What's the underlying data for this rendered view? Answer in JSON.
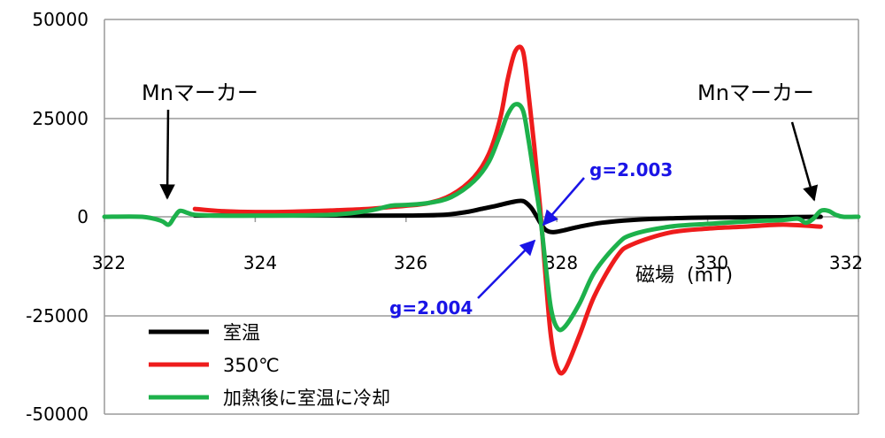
{
  "chart_data": {
    "type": "line",
    "xlabel": "磁場 (mT)",
    "xlabel_main": "磁場",
    "xlabel_unit": "(mT)",
    "ylabel": "",
    "xlim": [
      322,
      332
    ],
    "ylim": [
      -50000,
      50000
    ],
    "x_ticks": [
      "322",
      "324",
      "326",
      "328",
      "330",
      "332"
    ],
    "y_ticks": [
      "50000",
      "25000",
      "0",
      "-25000",
      "-50000"
    ],
    "grid": "horizontal",
    "legend_position": "bottom-left",
    "series": [
      {
        "name": "室温",
        "color": "#000000",
        "x": [
          323.2,
          324.0,
          325.0,
          326.0,
          326.5,
          326.8,
          327.0,
          327.2,
          327.4,
          327.55,
          327.65,
          327.72,
          327.78,
          327.85,
          327.95,
          328.1,
          328.3,
          328.6,
          329.0,
          329.5,
          330.0,
          331.0,
          331.5
        ],
        "y": [
          300,
          300,
          300,
          300,
          500,
          1200,
          2000,
          2800,
          3700,
          4000,
          2500,
          500,
          -1500,
          -3300,
          -3900,
          -3400,
          -2500,
          -1500,
          -800,
          -400,
          -200,
          -100,
          0
        ]
      },
      {
        "name": "350℃",
        "color": "#ee1c1c",
        "x": [
          323.2,
          323.5,
          324.0,
          324.5,
          325.0,
          325.5,
          325.8,
          326.0,
          326.3,
          326.6,
          326.9,
          327.1,
          327.25,
          327.35,
          327.45,
          327.55,
          327.62,
          327.7,
          327.78,
          327.85,
          327.92,
          328.0,
          328.1,
          328.3,
          328.5,
          328.8,
          329.0,
          329.5,
          330.0,
          330.5,
          331.0,
          331.5
        ],
        "y": [
          2000,
          1500,
          1200,
          1300,
          1600,
          2000,
          2500,
          2800,
          3500,
          5500,
          10000,
          16000,
          25000,
          35000,
          42000,
          42000,
          32000,
          18000,
          2000,
          -15000,
          -30000,
          -38000,
          -39000,
          -30000,
          -20000,
          -10000,
          -7000,
          -4000,
          -3000,
          -2500,
          -2000,
          -2500
        ]
      },
      {
        "name": "加熱後に室温に冷却",
        "color": "#1db14b",
        "x": [
          322.0,
          322.5,
          322.75,
          322.85,
          322.93,
          323.0,
          323.1,
          323.2,
          323.5,
          324.0,
          325.0,
          325.5,
          325.8,
          326.0,
          326.3,
          326.6,
          326.9,
          327.1,
          327.25,
          327.35,
          327.45,
          327.55,
          327.62,
          327.7,
          327.78,
          327.85,
          327.92,
          328.0,
          328.1,
          328.3,
          328.5,
          328.8,
          329.0,
          329.5,
          330.0,
          330.5,
          331.0,
          331.2,
          331.3,
          331.4,
          331.5,
          331.6,
          331.7,
          331.8,
          332.0
        ],
        "y": [
          0,
          0,
          -1000,
          -2000,
          0,
          1500,
          1000,
          500,
          300,
          300,
          500,
          1500,
          2800,
          3000,
          3500,
          5000,
          9000,
          14000,
          21000,
          26000,
          28500,
          27000,
          20000,
          10000,
          0,
          -12000,
          -23000,
          -28000,
          -28000,
          -22000,
          -14000,
          -7000,
          -4500,
          -2500,
          -1800,
          -1200,
          -800,
          -500,
          -1500,
          -500,
          1500,
          1500,
          500,
          0,
          0
        ]
      }
    ],
    "annotations": [
      {
        "text": "Mnマーカー",
        "points_to_x": 322.9
      },
      {
        "text": "Mnマーカー",
        "points_to_x": 331.4
      },
      {
        "text": "g=2.003",
        "points_to_x": 327.75
      },
      {
        "text": "g=2.004",
        "points_to_x": 327.75
      }
    ]
  }
}
